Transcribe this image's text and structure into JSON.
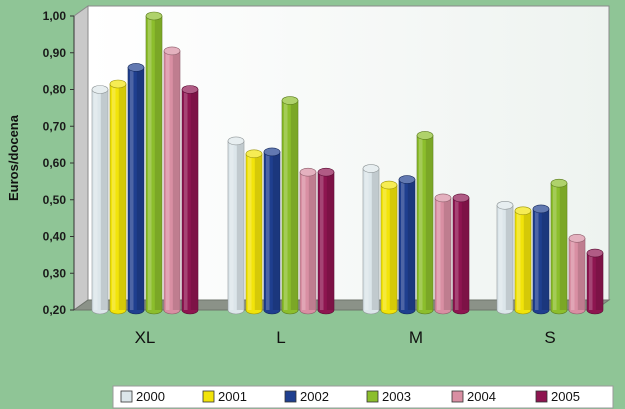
{
  "chart_data": {
    "type": "bar",
    "title": "",
    "xlabel": "",
    "ylabel": "Euros/docena",
    "ylim": [
      0.2,
      1.0
    ],
    "yticks": [
      "0,20",
      "0,30",
      "0,40",
      "0,50",
      "0,60",
      "0,70",
      "0,80",
      "0,90",
      "1,00"
    ],
    "categories": [
      "XL",
      "L",
      "M",
      "S"
    ],
    "series": [
      {
        "name": "2000",
        "color": "#dce6ea",
        "values": [
          0.8,
          0.66,
          0.585,
          0.485
        ]
      },
      {
        "name": "2001",
        "color": "#f2e40a",
        "values": [
          0.815,
          0.625,
          0.54,
          0.47
        ]
      },
      {
        "name": "2002",
        "color": "#1f3f8f",
        "values": [
          0.86,
          0.63,
          0.555,
          0.475
        ]
      },
      {
        "name": "2003",
        "color": "#8cbe2c",
        "values": [
          1.0,
          0.77,
          0.675,
          0.545
        ]
      },
      {
        "name": "2004",
        "color": "#d98fa3",
        "values": [
          0.905,
          0.575,
          0.505,
          0.395
        ]
      },
      {
        "name": "2005",
        "color": "#8e1550",
        "values": [
          0.8,
          0.575,
          0.505,
          0.355
        ]
      }
    ],
    "grid": false,
    "legend_position": "bottom"
  }
}
